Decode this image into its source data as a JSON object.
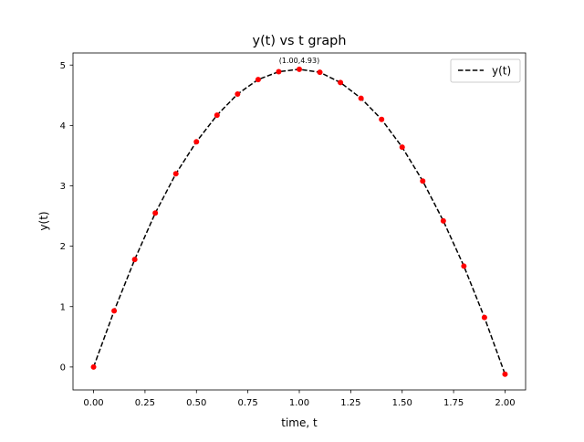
{
  "chart_data": {
    "type": "line",
    "title": "y(t) vs t graph",
    "xlabel": "time, t",
    "ylabel": "y(t)",
    "xlim": [
      -0.1,
      2.1
    ],
    "ylim": [
      -0.38,
      5.2
    ],
    "xticks": [
      0.0,
      0.25,
      0.5,
      0.75,
      1.0,
      1.25,
      1.5,
      1.75,
      2.0
    ],
    "xtick_labels": [
      "0.00",
      "0.25",
      "0.50",
      "0.75",
      "1.00",
      "1.25",
      "1.50",
      "1.75",
      "2.00"
    ],
    "yticks": [
      0,
      1,
      2,
      3,
      4,
      5
    ],
    "ytick_labels": [
      "0",
      "1",
      "2",
      "3",
      "4",
      "5"
    ],
    "grid": false,
    "legend": {
      "position": "top-right",
      "entries": [
        {
          "label": "y(t)",
          "style": "dashed",
          "color": "#000000"
        }
      ]
    },
    "series": [
      {
        "name": "y(t)",
        "style": "dashed",
        "color": "#000000",
        "x": [
          0.0,
          0.1,
          0.2,
          0.3,
          0.4,
          0.5,
          0.6,
          0.7,
          0.8,
          0.9,
          1.0,
          1.1,
          1.2,
          1.3,
          1.4,
          1.5,
          1.6,
          1.7,
          1.8,
          1.9,
          2.0
        ],
        "y": [
          0.0,
          0.93,
          1.78,
          2.55,
          3.2,
          3.73,
          4.17,
          4.52,
          4.76,
          4.89,
          4.93,
          4.88,
          4.71,
          4.45,
          4.1,
          3.64,
          3.08,
          2.42,
          1.67,
          0.82,
          -0.12
        ]
      },
      {
        "markers": true,
        "color": "#ff0000",
        "x": [
          0.0,
          0.1,
          0.2,
          0.3,
          0.4,
          0.5,
          0.6,
          0.7,
          0.8,
          0.9,
          1.0,
          1.1,
          1.2,
          1.3,
          1.4,
          1.5,
          1.6,
          1.7,
          1.8,
          1.9,
          2.0
        ],
        "y": [
          0.0,
          0.93,
          1.78,
          2.55,
          3.2,
          3.73,
          4.17,
          4.52,
          4.76,
          4.89,
          4.93,
          4.88,
          4.71,
          4.45,
          4.1,
          3.64,
          3.08,
          2.42,
          1.67,
          0.82,
          -0.12
        ]
      }
    ],
    "annotations": [
      {
        "text": "(1.00,4.93)",
        "x": 1.0,
        "y": 4.93
      }
    ]
  }
}
